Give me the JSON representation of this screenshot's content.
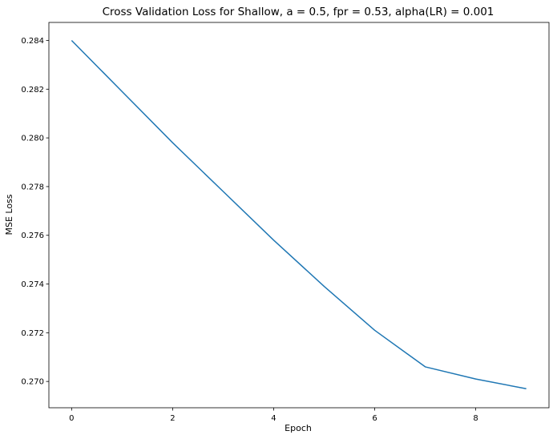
{
  "chart_data": {
    "type": "line",
    "title": "Cross Validation Loss for Shallow, a = 0.5, fpr = 0.53, alpha(LR) = 0.001",
    "xlabel": "Epoch",
    "ylabel": "MSE Loss",
    "xlim": [
      -0.45,
      9.45
    ],
    "ylim": [
      0.26892,
      0.28474
    ],
    "xticks": [
      {
        "value": 0,
        "label": "0"
      },
      {
        "value": 2,
        "label": "2"
      },
      {
        "value": 4,
        "label": "4"
      },
      {
        "value": 6,
        "label": "6"
      },
      {
        "value": 8,
        "label": "8"
      }
    ],
    "yticks": [
      {
        "value": 0.27,
        "label": "0.270"
      },
      {
        "value": 0.272,
        "label": "0.272"
      },
      {
        "value": 0.274,
        "label": "0.274"
      },
      {
        "value": 0.276,
        "label": "0.276"
      },
      {
        "value": 0.278,
        "label": "0.278"
      },
      {
        "value": 0.28,
        "label": "0.280"
      },
      {
        "value": 0.282,
        "label": "0.282"
      },
      {
        "value": 0.284,
        "label": "0.284"
      }
    ],
    "grid": false,
    "legend": false,
    "series": [
      {
        "color": "#1f77b4",
        "x": [
          0,
          1,
          2,
          3,
          4,
          5,
          6,
          7,
          8,
          9
        ],
        "y": [
          0.284,
          0.2819,
          0.2798,
          0.2778,
          0.2758,
          0.2739,
          0.2721,
          0.2706,
          0.2701,
          0.2697
        ]
      }
    ]
  }
}
